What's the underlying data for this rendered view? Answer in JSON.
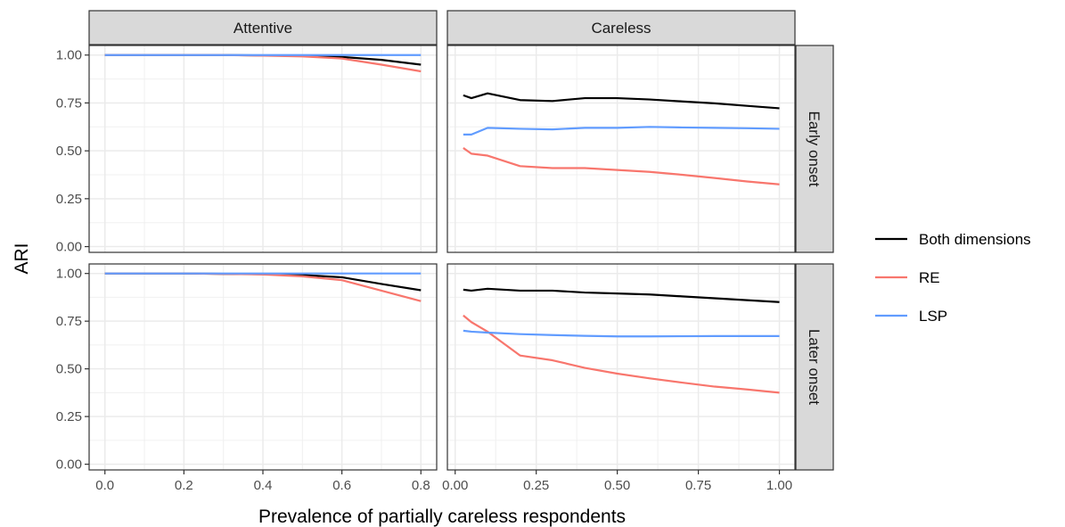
{
  "chart_data": {
    "type": "line",
    "xlabel": "Prevalence of partially careless respondents",
    "ylabel": "ARI",
    "legend_position": "right",
    "grid": true,
    "yticks": [
      0.0,
      0.25,
      0.5,
      0.75,
      1.0
    ],
    "ytick_labels": [
      "0.00",
      "0.25",
      "0.50",
      "0.75",
      "1.00"
    ],
    "ylim": [
      -0.03,
      1.05
    ],
    "columns": [
      {
        "label": "Attentive",
        "xlim": [
          -0.04,
          0.84
        ],
        "xticks": [
          0.0,
          0.2,
          0.4,
          0.6,
          0.8
        ],
        "xtick_labels": [
          "0.0",
          "0.2",
          "0.4",
          "0.6",
          "0.8"
        ]
      },
      {
        "label": "Careless",
        "xlim": [
          -0.024,
          1.048
        ],
        "xticks": [
          0.0,
          0.25,
          0.5,
          0.75,
          1.0
        ],
        "xtick_labels": [
          "0.00",
          "0.25",
          "0.50",
          "0.75",
          "1.00"
        ]
      }
    ],
    "rows": [
      {
        "label": "Early onset"
      },
      {
        "label": "Later onset"
      }
    ],
    "legend": [
      {
        "name": "Both dimensions",
        "color": "#000000"
      },
      {
        "name": "RE",
        "color": "#F8766D"
      },
      {
        "name": "LSP",
        "color": "#619CFF"
      }
    ],
    "panels": [
      {
        "row": 0,
        "col": 0,
        "series": [
          {
            "name": "Both dimensions",
            "x": [
              0,
              0.1,
              0.2,
              0.3,
              0.4,
              0.5,
              0.6,
              0.7,
              0.8
            ],
            "y": [
              1.0,
              1.0,
              1.0,
              1.0,
              0.998,
              0.995,
              0.99,
              0.975,
              0.95
            ]
          },
          {
            "name": "RE",
            "x": [
              0,
              0.1,
              0.2,
              0.3,
              0.4,
              0.5,
              0.6,
              0.7,
              0.8
            ],
            "y": [
              1.0,
              1.0,
              1.0,
              1.0,
              0.997,
              0.993,
              0.982,
              0.95,
              0.915
            ]
          },
          {
            "name": "LSP",
            "x": [
              0,
              0.2,
              0.4,
              0.6,
              0.8
            ],
            "y": [
              1.0,
              1.0,
              1.0,
              1.0,
              1.0
            ]
          }
        ]
      },
      {
        "row": 0,
        "col": 1,
        "series": [
          {
            "name": "Both dimensions",
            "x": [
              0.025,
              0.05,
              0.1,
              0.2,
              0.3,
              0.4,
              0.5,
              0.6,
              0.7,
              0.8,
              0.9,
              1.0
            ],
            "y": [
              0.79,
              0.775,
              0.8,
              0.765,
              0.76,
              0.775,
              0.775,
              0.768,
              0.758,
              0.748,
              0.735,
              0.722
            ]
          },
          {
            "name": "RE",
            "x": [
              0.025,
              0.05,
              0.1,
              0.2,
              0.3,
              0.4,
              0.5,
              0.6,
              0.7,
              0.8,
              0.9,
              1.0
            ],
            "y": [
              0.515,
              0.485,
              0.475,
              0.42,
              0.41,
              0.41,
              0.4,
              0.39,
              0.375,
              0.358,
              0.34,
              0.325
            ]
          },
          {
            "name": "LSP",
            "x": [
              0.025,
              0.05,
              0.1,
              0.2,
              0.3,
              0.4,
              0.5,
              0.6,
              0.7,
              0.8,
              0.9,
              1.0
            ],
            "y": [
              0.585,
              0.585,
              0.62,
              0.615,
              0.612,
              0.62,
              0.62,
              0.625,
              0.622,
              0.62,
              0.618,
              0.615
            ]
          }
        ]
      },
      {
        "row": 1,
        "col": 0,
        "series": [
          {
            "name": "Both dimensions",
            "x": [
              0,
              0.1,
              0.2,
              0.3,
              0.4,
              0.5,
              0.6,
              0.7,
              0.8
            ],
            "y": [
              1.0,
              1.0,
              1.0,
              0.998,
              0.996,
              0.992,
              0.98,
              0.945,
              0.912
            ]
          },
          {
            "name": "RE",
            "x": [
              0,
              0.1,
              0.2,
              0.3,
              0.4,
              0.5,
              0.6,
              0.7,
              0.8
            ],
            "y": [
              1.0,
              1.0,
              1.0,
              0.998,
              0.995,
              0.985,
              0.965,
              0.91,
              0.855
            ]
          },
          {
            "name": "LSP",
            "x": [
              0,
              0.2,
              0.4,
              0.6,
              0.8
            ],
            "y": [
              1.0,
              1.0,
              1.0,
              1.0,
              1.0
            ]
          }
        ]
      },
      {
        "row": 1,
        "col": 1,
        "series": [
          {
            "name": "Both dimensions",
            "x": [
              0.025,
              0.05,
              0.1,
              0.2,
              0.3,
              0.4,
              0.5,
              0.6,
              0.7,
              0.8,
              0.9,
              1.0
            ],
            "y": [
              0.915,
              0.91,
              0.92,
              0.91,
              0.91,
              0.9,
              0.895,
              0.89,
              0.88,
              0.87,
              0.86,
              0.85
            ]
          },
          {
            "name": "RE",
            "x": [
              0.025,
              0.05,
              0.1,
              0.2,
              0.3,
              0.4,
              0.5,
              0.6,
              0.7,
              0.8,
              0.9,
              1.0
            ],
            "y": [
              0.78,
              0.745,
              0.695,
              0.57,
              0.545,
              0.505,
              0.475,
              0.45,
              0.428,
              0.407,
              0.392,
              0.375
            ]
          },
          {
            "name": "LSP",
            "x": [
              0.025,
              0.05,
              0.1,
              0.2,
              0.3,
              0.4,
              0.5,
              0.6,
              0.7,
              0.8,
              0.9,
              1.0
            ],
            "y": [
              0.7,
              0.695,
              0.69,
              0.682,
              0.677,
              0.673,
              0.67,
              0.67,
              0.671,
              0.672,
              0.672,
              0.672
            ]
          }
        ]
      }
    ]
  }
}
